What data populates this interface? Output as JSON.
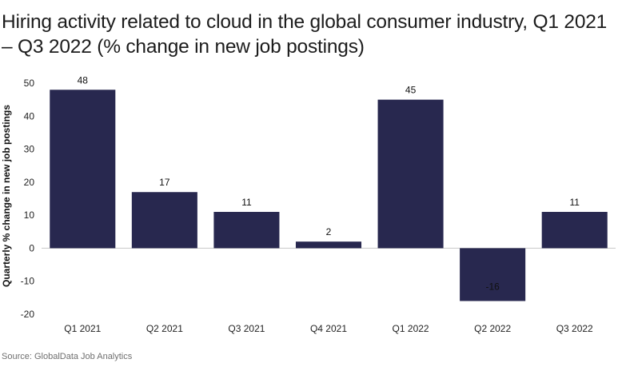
{
  "title": "Hiring activity related to cloud in the global consumer industry, Q1 2021 – Q3 2022 (% change in new job postings)",
  "source": "Source: GlobalData Job Analytics",
  "colors": {
    "bar": "#28284f",
    "zero_line": "#c8c8c8"
  },
  "chart_data": {
    "type": "bar",
    "categories": [
      "Q1 2021",
      "Q2 2021",
      "Q3 2021",
      "Q4 2021",
      "Q1 2022",
      "Q2 2022",
      "Q3 2022"
    ],
    "values": [
      48,
      17,
      11,
      2,
      45,
      -16,
      11
    ],
    "data_labels": [
      "48",
      "17",
      "11",
      "2",
      "45",
      "-16",
      "11"
    ],
    "ylabel": "Quarterly % change in new job postings",
    "xlabel": "",
    "ylim": [
      -20,
      50
    ],
    "yticks": [
      -20,
      -10,
      0,
      10,
      20,
      30,
      40,
      50
    ],
    "grid": false,
    "legend": "none"
  }
}
